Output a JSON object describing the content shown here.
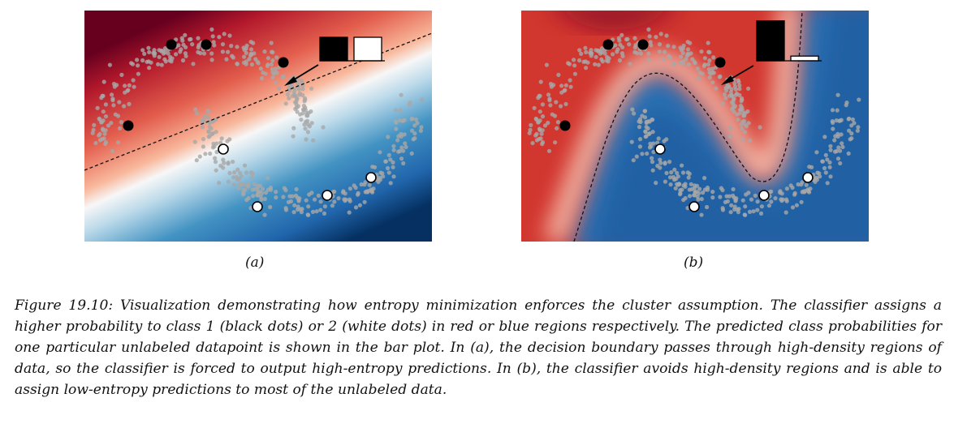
{
  "figure": {
    "panels": [
      {
        "label": "(a)",
        "bars": [
          0.5,
          0.5
        ],
        "boundary": "linear"
      },
      {
        "label": "(b)",
        "bars": [
          0.85,
          0.1
        ],
        "boundary": "curved"
      }
    ],
    "class1_color": "#000000",
    "class2_color": "#ffffff",
    "red": "#b2182b",
    "blue": "#2166ac",
    "caption": "Figure 19.10: Visualization demonstrating how entropy minimization enforces the cluster assumption. The classifier assigns a higher probability to class 1 (black dots) or 2 (white dots) in red or blue regions respectively. The predicted class probabilities for one particular unlabeled datapoint is shown in the bar plot. In (a), the decision boundary passes through high-density regions of data, so the classifier is forced to output high-entropy predictions. In (b), the classifier avoids high-density regions and is able to assign low-entropy predictions to most of the unlabeled data."
  }
}
